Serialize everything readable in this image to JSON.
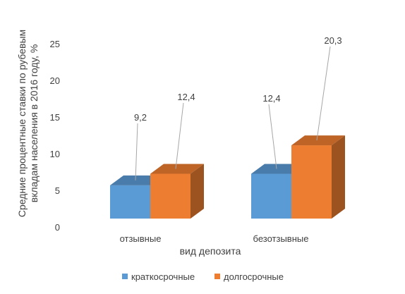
{
  "chart_data": {
    "type": "bar",
    "style": "3d-clustered-column",
    "categories": [
      "отзывные",
      "безотзывные"
    ],
    "series": [
      {
        "name": "краткосрочные",
        "values": [
          9.2,
          12.4
        ],
        "color": "#5B9BD5"
      },
      {
        "name": "долгосрочные",
        "values": [
          12.4,
          20.3
        ],
        "color": "#ED7D31"
      }
    ],
    "data_labels": [
      [
        "9,2",
        "12,4"
      ],
      [
        "12,4",
        "20,3"
      ]
    ],
    "xlabel": "вид депозита",
    "ylabel": "Средние процентные ставки по рубевым вкладам населения в 2016 году, %",
    "ylabel_lines": [
      "Средние процентные ставки по рубевым",
      "вкладам населения в 2016 году, %"
    ],
    "yticks": [
      "0",
      "5",
      "10",
      "15",
      "20",
      "25"
    ],
    "ylim": [
      0,
      25
    ],
    "grid": false,
    "legend_position": "bottom"
  }
}
